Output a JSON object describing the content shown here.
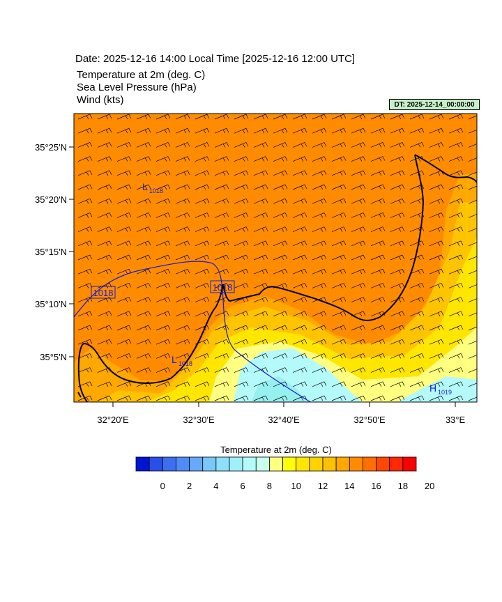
{
  "header": {
    "date_line": "Date: 2025-12-16  14:00 Local Time [2025-12-16  12:00 UTC]",
    "variables": [
      "Temperature at 2m   (deg. C)",
      "Sea Level Pressure   (hPa)",
      "Wind   (kts)"
    ],
    "dt_badge": "DT: 2025-12-14_00:00:00"
  },
  "map": {
    "x_ticks": [
      "32°20'E",
      "32°30'E",
      "32°40'E",
      "32°50'E",
      "33°E"
    ],
    "y_ticks": [
      "35°25'N",
      "35°20'N",
      "35°15'N",
      "35°10'N",
      "35°5'N"
    ],
    "pressure_labels": [
      {
        "label": "1018",
        "kind": "contour"
      },
      {
        "label": "1018",
        "kind": "contour"
      }
    ],
    "pressure_centers": [
      {
        "symbol": "L",
        "value": "1018"
      },
      {
        "symbol": "L",
        "value": "1018"
      },
      {
        "symbol": "H",
        "value": "1019"
      }
    ],
    "colors": {
      "warm": "#ff8c00",
      "orange_light": "#ffa800",
      "amber": "#ffc400",
      "yellow": "#ffe600",
      "pale_yellow": "#ffff80",
      "cyan_light": "#b4fafa",
      "cyan": "#96f0f0",
      "contour": "#1a1ad6",
      "coast": "#000000"
    }
  },
  "colorbar": {
    "title": "Temperature at 2m  (deg. C)",
    "labels": [
      "0",
      "2",
      "4",
      "6",
      "8",
      "10",
      "12",
      "14",
      "16",
      "18",
      "20"
    ],
    "colors": [
      "#0014d2",
      "#2850e6",
      "#3c6ef0",
      "#508cf5",
      "#64aaf8",
      "#78c8fa",
      "#8ce0fc",
      "#a0f0fc",
      "#b4fafa",
      "#c8fff0",
      "#ffff80",
      "#ffff00",
      "#ffe600",
      "#ffd200",
      "#ffc000",
      "#ffa800",
      "#ff8c00",
      "#ff6e00",
      "#ff4800",
      "#ff2800",
      "#ff0000"
    ]
  }
}
